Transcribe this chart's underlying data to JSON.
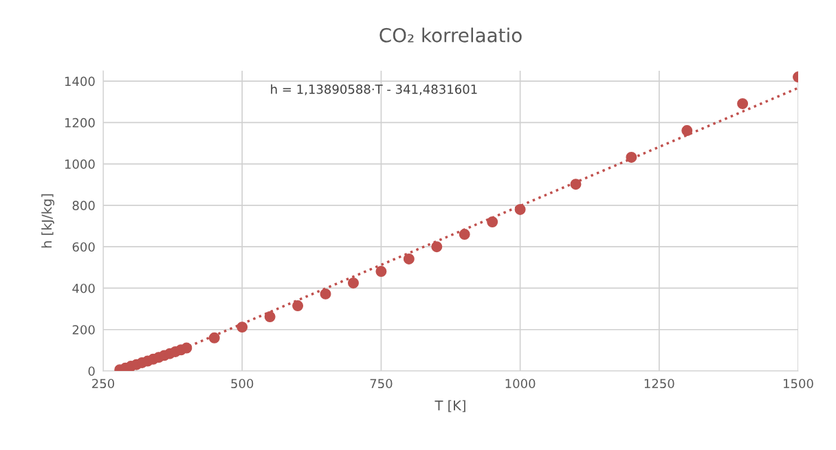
{
  "chart_data": {
    "type": "scatter",
    "title": "CO₂ korrelaatio",
    "xlabel": "T [K]",
    "ylabel": "h [kJ/kg]",
    "series": [
      {
        "color": "#c0504d",
        "marker": "circle",
        "x": [
          280,
          290,
          300,
          310,
          320,
          330,
          340,
          350,
          360,
          370,
          380,
          390,
          400,
          450,
          500,
          550,
          600,
          650,
          700,
          750,
          800,
          850,
          900,
          950,
          1000,
          1100,
          1200,
          1300,
          1400,
          1500
        ],
        "values": [
          6,
          14,
          23,
          31,
          40,
          48,
          57,
          66,
          75,
          84,
          93,
          102,
          111,
          160,
          212,
          262,
          315,
          372,
          425,
          481,
          541,
          600,
          660,
          720,
          780,
          902,
          1032,
          1161,
          1291,
          1420
        ]
      },
      {
        "type": "line",
        "color": "#c0504d",
        "marker": "none",
        "line_style": "dotted",
        "x": [
          300,
          1500
        ],
        "values": [
          0,
          1367
        ]
      }
    ],
    "xlim": [
      250,
      1500
    ],
    "xticks": [
      250,
      500,
      750,
      1000,
      1250,
      1500
    ],
    "ylim": [
      0,
      1450
    ],
    "yticks": [
      0,
      200,
      400,
      600,
      800,
      1000,
      1200,
      1400
    ],
    "grid": true,
    "annotations": [
      "h = 1,13890588·T - 341,4831601"
    ]
  }
}
